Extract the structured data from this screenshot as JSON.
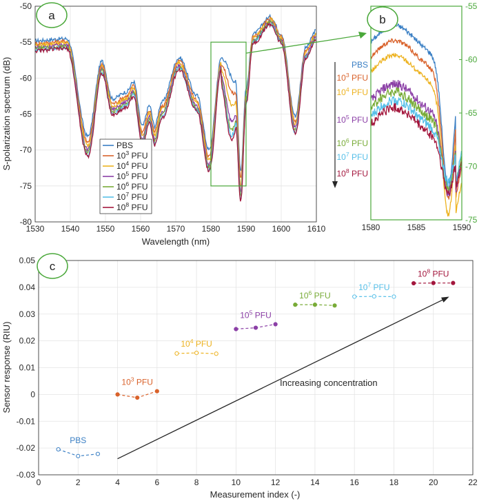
{
  "chart_data": [
    {
      "panel": "a",
      "type": "line",
      "xlabel": "Wavelength (nm)",
      "ylabel": "S-polarization spectrum (dB)",
      "xlim": [
        1530,
        1610
      ],
      "ylim": [
        -80,
        -50
      ],
      "xticks": [
        1530,
        1540,
        1550,
        1560,
        1570,
        1580,
        1590,
        1600,
        1610
      ],
      "yticks": [
        -50,
        -55,
        -60,
        -65,
        -70,
        -75,
        -80
      ],
      "grid": true,
      "legend": {
        "placement": "bottom-left-inside",
        "entries": [
          "PBS",
          "10^3 PFU",
          "10^4 PFU",
          "10^5 PFU",
          "10^6 PFU",
          "10^7 PFU",
          "10^8 PFU"
        ]
      },
      "zoom_box": {
        "x": [
          1580,
          1590
        ],
        "y": [
          -75,
          -55
        ]
      },
      "features": [
        {
          "x": 1530,
          "dy": 0
        },
        {
          "x": 1539,
          "dy": 0.3
        },
        {
          "x": 1545,
          "dy": -14
        },
        {
          "x": 1549,
          "dy": -3
        },
        {
          "x": 1552,
          "dy": -8.5
        },
        {
          "x": 1556,
          "dy": -7.5
        },
        {
          "x": 1558,
          "dy": -6
        },
        {
          "x": 1560.5,
          "dy": -12.5
        },
        {
          "x": 1562.5,
          "dy": -9.5
        },
        {
          "x": 1564,
          "dy": -12.5
        },
        {
          "x": 1566,
          "dy": -9
        },
        {
          "x": 1571,
          "dy": -2.5
        },
        {
          "x": 1576,
          "dy": -8
        },
        {
          "x": 1579.5,
          "dy": -16
        },
        {
          "x": 1583,
          "dy": -2.5
        },
        {
          "x": 1587,
          "dy": -6
        },
        {
          "x": 1588.5,
          "dy": -19
        },
        {
          "x": 1590,
          "dy": -7
        },
        {
          "x": 1592,
          "dy": 1
        },
        {
          "x": 1597,
          "dy": 3.5
        },
        {
          "x": 1600,
          "dy": 1
        },
        {
          "x": 1604,
          "dy": -11
        },
        {
          "x": 1607,
          "dy": -1
        },
        {
          "x": 1610,
          "dy": 1.5
        }
      ],
      "series": [
        {
          "name": "PBS",
          "color": "#3a7fc4",
          "base": -54.8,
          "scale": 0.95,
          "offset": 0
        },
        {
          "name": "10^3 PFU",
          "color": "#d9622b",
          "base": -55.2,
          "scale": 0.98,
          "offset": -1.5
        },
        {
          "name": "10^4 PFU",
          "color": "#edb21f",
          "base": -55.4,
          "scale": 1.0,
          "offset": -3.0
        },
        {
          "name": "10^5 PFU",
          "color": "#8b3fa6",
          "base": -55.7,
          "scale": 1.02,
          "offset": -5.0
        },
        {
          "name": "10^6 PFU",
          "color": "#78ab37",
          "base": -55.9,
          "scale": 1.03,
          "offset": -6.0
        },
        {
          "name": "10^7 PFU",
          "color": "#56bfe8",
          "base": -56.1,
          "scale": 1.04,
          "offset": -6.5
        },
        {
          "name": "10^8 PFU",
          "color": "#a3173d",
          "base": -56.2,
          "scale": 1.05,
          "offset": -7.0
        }
      ]
    },
    {
      "panel": "b",
      "type": "line",
      "xlim": [
        1580,
        1590
      ],
      "ylim": [
        -75,
        -55
      ],
      "xticks": [
        1580,
        1585,
        1590
      ],
      "yticks": [
        -55,
        -60,
        -65,
        -70,
        -75
      ],
      "y_axis_side": "right",
      "color": "#4aa83a",
      "labels": [
        "PBS",
        "10^3 PFU",
        "10^4 PFU",
        "10^5 PFU",
        "10^6 PFU",
        "10^7 PFU",
        "10^8 PFU"
      ],
      "peaks": [
        -56.8,
        -58.2,
        -59.6,
        -62.3,
        -63.0,
        -63.8,
        -64.5
      ],
      "dips": [
        -72.0,
        -73.0,
        -74.5,
        -72.5,
        -72.0,
        -71.5,
        -72.5
      ]
    },
    {
      "panel": "c",
      "type": "scatter",
      "xlabel": "Measurement index (-)",
      "ylabel": "Sensor response (RIU)",
      "xlim": [
        0,
        22
      ],
      "ylim": [
        -0.03,
        0.05
      ],
      "xticks": [
        0,
        2,
        4,
        6,
        8,
        10,
        12,
        14,
        16,
        18,
        20,
        22
      ],
      "yticks": [
        -0.03,
        -0.02,
        -0.01,
        0,
        0.01,
        0.02,
        0.03,
        0.04,
        0.05
      ],
      "grid": true,
      "annotation": "Increasing concentration",
      "arrow": {
        "from": [
          4,
          -0.024
        ],
        "to": [
          20.8,
          0.0365
        ]
      },
      "series": [
        {
          "name": "PBS",
          "color": "#3a7fc4",
          "x": [
            1,
            2,
            3
          ],
          "y": [
            -0.0205,
            -0.023,
            -0.0222
          ]
        },
        {
          "name": "10^3 PFU",
          "color": "#d9622b",
          "x": [
            4,
            5,
            6
          ],
          "y": [
            0.0,
            -0.0012,
            0.0012
          ]
        },
        {
          "name": "10^4 PFU",
          "color": "#edb21f",
          "x": [
            7,
            8,
            9
          ],
          "y": [
            0.0153,
            0.0155,
            0.0152
          ]
        },
        {
          "name": "10^5 PFU",
          "color": "#8b3fa6",
          "x": [
            10,
            11,
            12
          ],
          "y": [
            0.0244,
            0.0249,
            0.0262
          ]
        },
        {
          "name": "10^6 PFU",
          "color": "#78ab37",
          "x": [
            13,
            14,
            15
          ],
          "y": [
            0.0335,
            0.0335,
            0.0332
          ]
        },
        {
          "name": "10^7 PFU",
          "color": "#56bfe8",
          "x": [
            16,
            17,
            18
          ],
          "y": [
            0.0365,
            0.0366,
            0.0365
          ]
        },
        {
          "name": "10^8 PFU",
          "color": "#a3173d",
          "x": [
            19,
            20,
            21
          ],
          "y": [
            0.0415,
            0.0416,
            0.0416
          ]
        }
      ]
    }
  ],
  "badges": {
    "a": "a",
    "b": "b",
    "c": "c"
  }
}
